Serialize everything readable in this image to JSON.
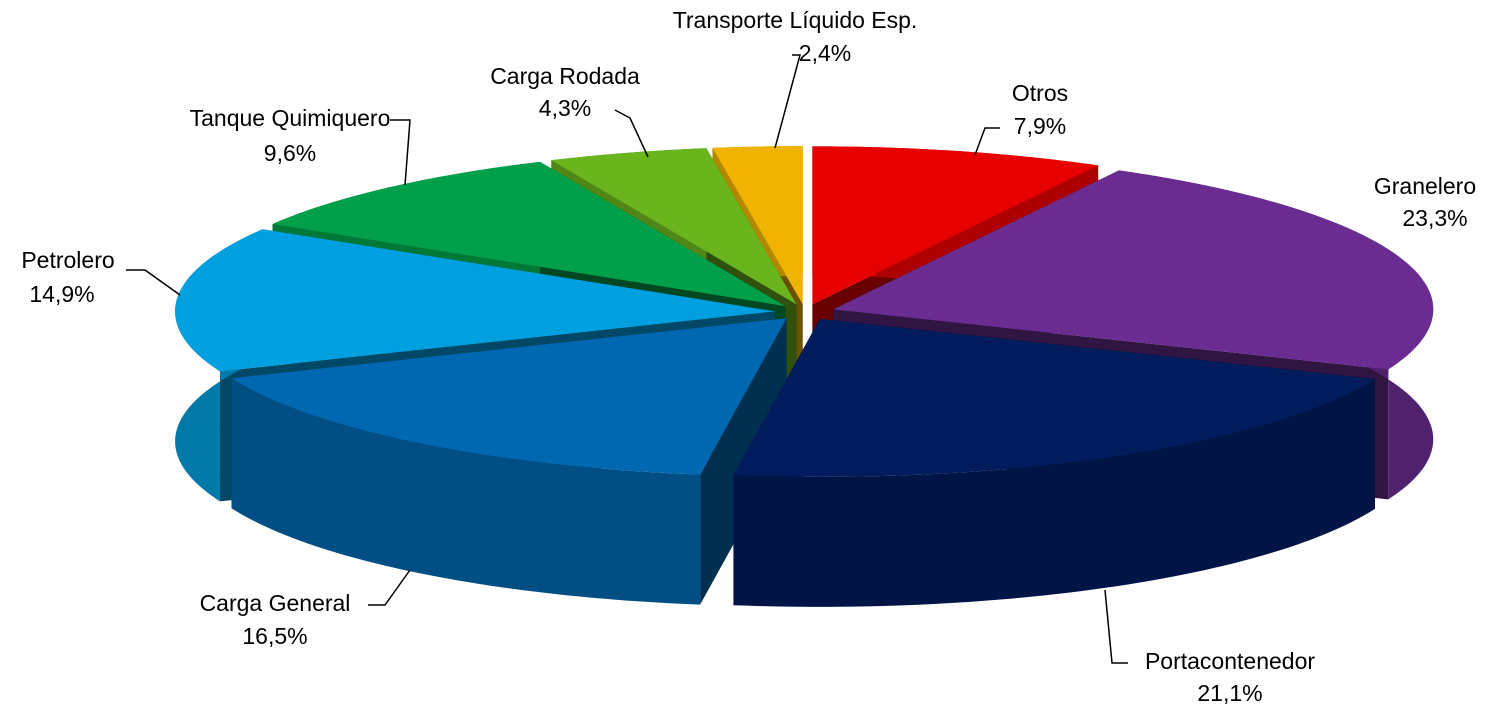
{
  "chart_data": {
    "type": "pie3d",
    "categories": [
      "Otros",
      "Granelero",
      "Portacontenedor",
      "Carga General",
      "Petrolero",
      "Tanque Quimiquero",
      "Carga Rodada",
      "Transporte Líquido Esp."
    ],
    "values": [
      7.9,
      23.3,
      21.1,
      16.5,
      14.9,
      9.6,
      4.3,
      2.4
    ],
    "value_labels": [
      "7,9%",
      "23,3%",
      "21,1%",
      "16,5%",
      "14,9%",
      "9,6%",
      "4,3%",
      "2,4%"
    ],
    "colors": [
      "#e60000",
      "#6a2c91",
      "#001c5c",
      "#0068b0",
      "#00a0e0",
      "#00a04a",
      "#6ab41e",
      "#f0b400"
    ]
  }
}
